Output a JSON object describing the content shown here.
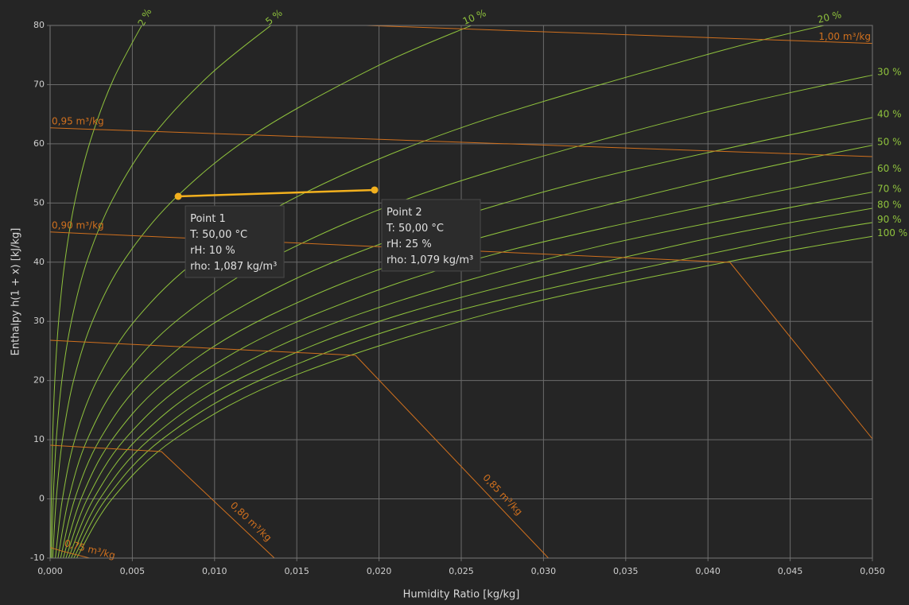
{
  "chart_data": {
    "type": "line",
    "x_label": "Humidity Ratio [kg/kg]",
    "y_label": "Enthalpy h(1 + x) [kJ/kg]",
    "xlim": [
      0,
      0.05
    ],
    "ylim": [
      -10,
      80
    ],
    "xticks": [
      {
        "value": 0,
        "label": "0,000"
      },
      {
        "value": 0.005,
        "label": "0,005"
      },
      {
        "value": 0.01,
        "label": "0,010"
      },
      {
        "value": 0.015,
        "label": "0,015"
      },
      {
        "value": 0.02,
        "label": "0,020"
      },
      {
        "value": 0.025,
        "label": "0,025"
      },
      {
        "value": 0.03,
        "label": "0,030"
      },
      {
        "value": 0.035,
        "label": "0,035"
      },
      {
        "value": 0.04,
        "label": "0,040"
      },
      {
        "value": 0.045,
        "label": "0,045"
      },
      {
        "value": 0.05,
        "label": "0,050"
      }
    ],
    "yticks": [
      -10,
      0,
      10,
      20,
      30,
      40,
      50,
      60,
      70,
      80
    ],
    "grid": true,
    "grid_color": "#6b6b6b",
    "series": [
      {
        "name": "2 %",
        "color": "#8fc23d",
        "x": [
          3.2e-05,
          7.5e-05,
          0.000151,
          0.000288,
          0.000523,
          0.000908,
          0.00152,
          0.00246,
          0.00385,
          0.00584
        ],
        "values": [
          -10,
          0,
          10.05,
          20.13,
          30.21,
          40.31,
          50.44,
          60.6,
          70.9,
          81.35
        ]
      },
      {
        "name": "5 %",
        "color": "#8fc23d",
        "x": [
          8e-05,
          0.00019,
          0.000377,
          0.00072,
          0.00131,
          0.00227,
          0.00381,
          0.00616,
          0.00973,
          0.0137
        ],
        "values": [
          -10,
          0,
          10.06,
          20.15,
          30.25,
          40.41,
          50.65,
          61.05,
          71.7,
          80.6
        ]
      },
      {
        "name": "10 %",
        "color": "#8fc23d",
        "x": [
          0.00016,
          0.000375,
          0.000755,
          0.00144,
          0.00262,
          0.00456,
          0.00768,
          0.0125,
          0.0198,
          0.0257
        ],
        "values": [
          -10,
          0,
          10.07,
          20.17,
          30.33,
          40.58,
          51.0,
          61.76,
          73.0,
          80.1
        ]
      },
      {
        "name": "20 %",
        "color": "#8fc23d",
        "x": [
          0.00032,
          0.00075,
          0.00151,
          0.00289,
          0.00526,
          0.0092,
          0.0155,
          0.0255,
          0.0408,
          0.049
        ],
        "values": [
          -10,
          0,
          10.1,
          20.23,
          30.47,
          40.92,
          51.74,
          63.2,
          75.73,
          81.2
        ]
      },
      {
        "name": "30 %",
        "color": "#8fc23d",
        "x": [
          0.00048,
          0.00113,
          0.00227,
          0.00434,
          0.00792,
          0.0139,
          0.0236,
          0.039,
          0.052
        ],
        "values": [
          -10,
          0,
          10.11,
          20.28,
          30.62,
          41.27,
          52.5,
          64.71,
          72.8
        ]
      },
      {
        "name": "40 %",
        "color": "#8fc23d",
        "x": [
          0.00064,
          0.0015,
          0.00304,
          0.0058,
          0.0106,
          0.0187,
          0.0319,
          0.0531
        ],
        "values": [
          -10,
          0,
          10.12,
          20.34,
          30.77,
          41.63,
          53.27,
          66.3
        ]
      },
      {
        "name": "50 %",
        "color": "#8fc23d",
        "x": [
          0.0008,
          0.00188,
          0.0038,
          0.00727,
          0.0133,
          0.0235,
          0.0404,
          0.0515
        ],
        "values": [
          -10,
          0,
          10.13,
          20.39,
          30.92,
          41.99,
          54.06,
          60.6
        ]
      },
      {
        "name": "60 %",
        "color": "#8fc23d",
        "x": [
          0.00096,
          0.00226,
          0.00456,
          0.00873,
          0.016,
          0.0284,
          0.0516
        ],
        "values": [
          -10,
          0,
          10.14,
          20.45,
          31.07,
          42.35,
          56.2
        ]
      },
      {
        "name": "70 %",
        "color": "#8fc23d",
        "x": [
          0.00112,
          0.00264,
          0.00532,
          0.0102,
          0.0188,
          0.0334,
          0.052
        ],
        "values": [
          -10,
          0,
          10.16,
          20.5,
          31.23,
          42.7,
          52.9
        ]
      },
      {
        "name": "80 %",
        "color": "#8fc23d",
        "x": [
          0.00128,
          0.00302,
          0.00609,
          0.0117,
          0.0216,
          0.0385,
          0.0508
        ],
        "values": [
          -10,
          0,
          10.17,
          20.56,
          31.39,
          43.1,
          49.5
        ]
      },
      {
        "name": "90 %",
        "color": "#8fc23d",
        "x": [
          0.00144,
          0.0034,
          0.00686,
          0.0132,
          0.0244,
          0.0437,
          0.0516
        ],
        "values": [
          -10,
          0,
          10.19,
          20.61,
          31.54,
          43.49,
          47.4
        ]
      },
      {
        "name": "100 %",
        "color": "#8fc23d",
        "x": [
          0.0016,
          0.00377,
          0.00763,
          0.0147,
          0.0272,
          0.0411,
          0.0518
        ],
        "values": [
          -10.06,
          0,
          10.2,
          20.67,
          31.7,
          40.0,
          45.2
        ]
      }
    ],
    "volume_series": [
      {
        "name": "0,75 m³/kg",
        "color": "#d0701e",
        "x": [
          0,
          0.0007,
          0.0024
        ],
        "values": [
          -8.2,
          -8.8,
          -10
        ]
      },
      {
        "name": "0,80 m³/kg",
        "color": "#d0701e",
        "x": [
          0,
          0.00677,
          0.01364
        ],
        "values": [
          9.08,
          8.0,
          -10
        ]
      },
      {
        "name": "0,85 m³/kg",
        "color": "#d0701e",
        "x": [
          0,
          0.01857,
          0.0303
        ],
        "values": [
          26.8,
          24.25,
          -10
        ]
      },
      {
        "name": "0,90 m³/kg",
        "color": "#d0701e",
        "x": [
          0,
          0.04134,
          0.05
        ],
        "values": [
          45.1,
          39.97,
          10.15
        ]
      },
      {
        "name": "0,95 m³/kg",
        "color": "#d0701e",
        "x": [
          0,
          0.05
        ],
        "values": [
          62.7,
          57.84
        ]
      },
      {
        "name": "1,00 m³/kg",
        "color": "#d0701e",
        "x": [
          0,
          0.05
        ],
        "values": [
          81.9,
          76.96
        ]
      }
    ],
    "point_color": "#f2b01e",
    "points": [
      {
        "name": "Point 1",
        "x": 0.00779,
        "y": 51.12,
        "lines": [
          "T: 50,00 °C",
          "rH: 10 %",
          "rho: 1,087 kg/m³"
        ]
      },
      {
        "name": "Point 2",
        "x": 0.01973,
        "y": 52.2,
        "lines": [
          "T: 50,00 °C",
          "rH: 25 %",
          "rho: 1,079 kg/m³"
        ]
      }
    ]
  }
}
